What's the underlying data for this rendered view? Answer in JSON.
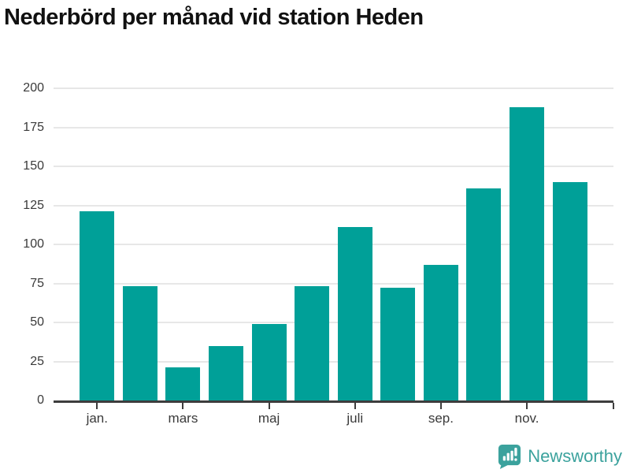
{
  "title": "Nederbörd per månad vid station Heden",
  "branding": {
    "logo_text": "Newsworthy",
    "logo_icon": "newsworthy-bubble-barchart-icon",
    "logo_color": "#3ba29d"
  },
  "chart_data": {
    "type": "bar",
    "title": "Nederbörd per månad vid station Heden",
    "n_bars": 12,
    "values": [
      121,
      73,
      21,
      35,
      49,
      73,
      111,
      72,
      87,
      136,
      188,
      140
    ],
    "x_tick_labels": [
      "jan.",
      "mars",
      "maj",
      "juli",
      "sep.",
      "nov."
    ],
    "x_tick_bar_indices": [
      0,
      2,
      4,
      6,
      8,
      10
    ],
    "y_tick_labels": [
      "0",
      "25",
      "50",
      "75",
      "100",
      "125",
      "150",
      "175",
      "200"
    ],
    "y_ticks": [
      0,
      25,
      50,
      75,
      100,
      125,
      150,
      175,
      200
    ],
    "ylim": [
      0,
      200
    ],
    "xlabel": "",
    "ylabel": "",
    "grid": "horizontal",
    "legend": "none",
    "bar_color": "#00a098",
    "grid_color": "#e7e7e7",
    "axis_color": "#3d3d3d",
    "tick_text_color": "#3a3a3a"
  }
}
